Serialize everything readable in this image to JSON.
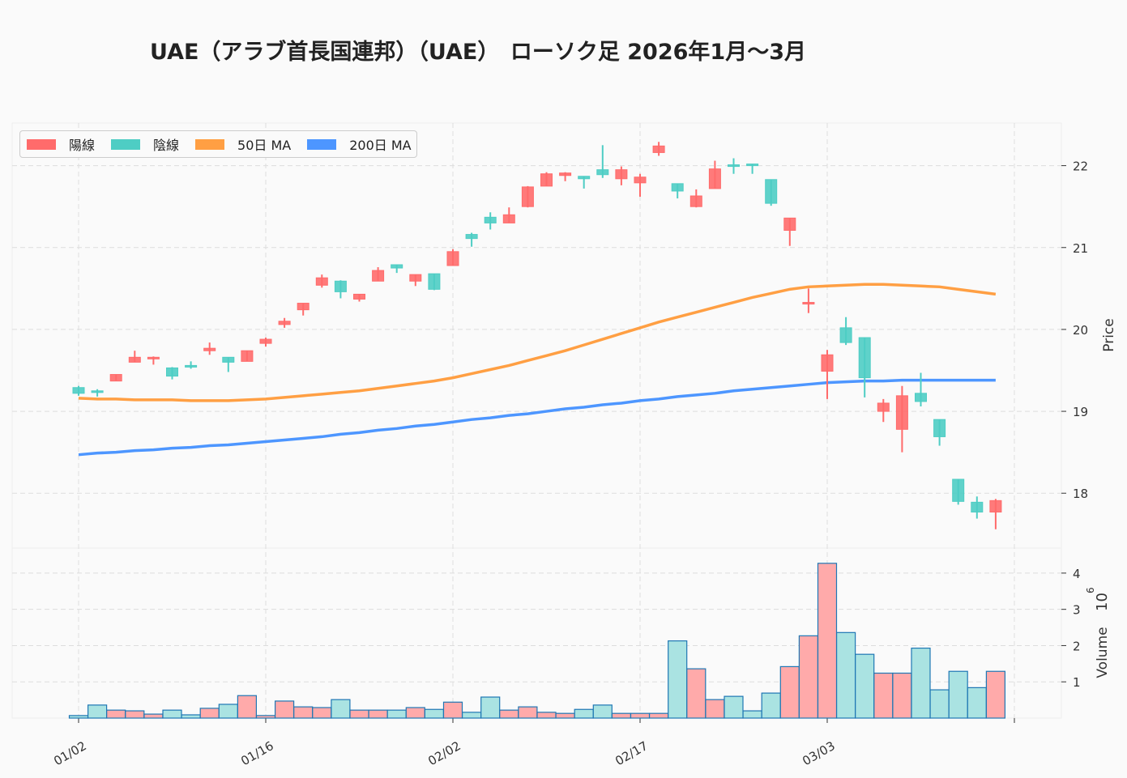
{
  "chart_data": [
    {
      "type": "candlestick",
      "title": "UAE（アラブ首長国連邦）（UAE）　ローソク足  2026年1月〜3月",
      "ylabel": "Price",
      "ylim": [
        17.33,
        22.52
      ],
      "yticks": [
        18,
        19,
        20,
        21,
        22
      ],
      "xticks": [
        {
          "label": "01/02",
          "index": 0
        },
        {
          "label": "01/16",
          "index": 10
        },
        {
          "label": "02/02",
          "index": 20
        },
        {
          "label": "02/17",
          "index": 30
        },
        {
          "label": "03/03",
          "index": 40
        },
        {
          "label": "",
          "index": 50
        }
      ],
      "grid": true,
      "legend_position": "top-left",
      "legend": [
        "陽線",
        "陰線",
        "50日 MA",
        "200日 MA"
      ],
      "colors": {
        "up": "#ff6b6b",
        "down": "#4ecdc4",
        "ma50": "#ff9f43",
        "ma200": "#4d96ff"
      },
      "ohlc": [
        [
          19.29,
          19.31,
          19.19,
          19.22
        ],
        [
          19.25,
          19.27,
          19.18,
          19.23
        ],
        [
          19.37,
          19.45,
          19.37,
          19.45
        ],
        [
          19.6,
          19.74,
          19.6,
          19.66
        ],
        [
          19.64,
          19.67,
          19.57,
          19.66
        ],
        [
          19.53,
          19.54,
          19.39,
          19.43
        ],
        [
          19.56,
          19.61,
          19.52,
          19.54
        ],
        [
          19.74,
          19.84,
          19.69,
          19.77
        ],
        [
          19.66,
          19.66,
          19.48,
          19.6
        ],
        [
          19.61,
          19.74,
          19.61,
          19.74
        ],
        [
          19.83,
          19.9,
          19.79,
          19.88
        ],
        [
          20.06,
          20.14,
          20.02,
          20.1
        ],
        [
          20.24,
          20.32,
          20.17,
          20.32
        ],
        [
          20.54,
          20.67,
          20.51,
          20.63
        ],
        [
          20.59,
          20.6,
          20.38,
          20.46
        ],
        [
          20.37,
          20.43,
          20.34,
          20.43
        ],
        [
          20.59,
          20.76,
          20.59,
          20.72
        ],
        [
          20.79,
          20.79,
          20.69,
          20.75
        ],
        [
          20.59,
          20.67,
          20.53,
          20.67
        ],
        [
          20.68,
          20.68,
          20.48,
          20.49
        ],
        [
          20.78,
          20.98,
          20.78,
          20.95
        ],
        [
          21.16,
          21.18,
          21.01,
          21.11
        ],
        [
          21.37,
          21.43,
          21.22,
          21.3
        ],
        [
          21.3,
          21.49,
          21.3,
          21.4
        ],
        [
          21.5,
          21.75,
          21.49,
          21.74
        ],
        [
          21.75,
          21.92,
          21.75,
          21.9
        ],
        [
          21.88,
          21.92,
          21.81,
          21.91
        ],
        [
          21.87,
          21.87,
          21.72,
          21.84
        ],
        [
          21.95,
          22.25,
          21.85,
          21.89
        ],
        [
          21.84,
          21.99,
          21.76,
          21.95
        ],
        [
          21.79,
          21.9,
          21.62,
          21.86
        ],
        [
          22.16,
          22.29,
          22.12,
          22.24
        ],
        [
          21.78,
          21.78,
          21.6,
          21.69
        ],
        [
          21.5,
          21.71,
          21.49,
          21.63
        ],
        [
          21.72,
          22.06,
          21.72,
          21.96
        ],
        [
          22.01,
          22.09,
          21.9,
          22.0
        ],
        [
          22.02,
          22.02,
          21.9,
          22.0
        ],
        [
          21.83,
          21.83,
          21.51,
          21.54
        ],
        [
          21.21,
          21.36,
          21.02,
          21.36
        ],
        [
          20.31,
          20.5,
          20.2,
          20.33
        ],
        [
          19.49,
          19.75,
          19.15,
          19.69
        ],
        [
          20.02,
          20.15,
          19.81,
          19.84
        ],
        [
          19.9,
          19.9,
          19.17,
          19.41
        ],
        [
          19.0,
          19.15,
          18.87,
          19.1
        ],
        [
          18.78,
          19.31,
          18.5,
          19.19
        ],
        [
          19.22,
          19.47,
          19.06,
          19.12
        ],
        [
          18.9,
          18.9,
          18.58,
          18.69
        ],
        [
          18.17,
          18.17,
          17.86,
          17.9
        ],
        [
          17.89,
          17.96,
          17.69,
          17.77
        ],
        [
          17.77,
          17.93,
          17.56,
          17.91
        ]
      ],
      "ma50": [
        19.16,
        19.15,
        19.15,
        19.14,
        19.14,
        19.14,
        19.13,
        19.13,
        19.13,
        19.14,
        19.15,
        19.17,
        19.19,
        19.21,
        19.23,
        19.25,
        19.28,
        19.31,
        19.34,
        19.37,
        19.41,
        19.46,
        19.51,
        19.56,
        19.62,
        19.68,
        19.74,
        19.81,
        19.88,
        19.95,
        20.02,
        20.09,
        20.15,
        20.21,
        20.27,
        20.33,
        20.39,
        20.44,
        20.49,
        20.52,
        20.53,
        20.54,
        20.55,
        20.55,
        20.54,
        20.53,
        20.52,
        20.49,
        20.46,
        20.43
      ],
      "ma200": [
        18.47,
        18.49,
        18.5,
        18.52,
        18.53,
        18.55,
        18.56,
        18.58,
        18.59,
        18.61,
        18.63,
        18.65,
        18.67,
        18.69,
        18.72,
        18.74,
        18.77,
        18.79,
        18.82,
        18.84,
        18.87,
        18.9,
        18.92,
        18.95,
        18.97,
        19.0,
        19.03,
        19.05,
        19.08,
        19.1,
        19.13,
        19.15,
        19.18,
        19.2,
        19.22,
        19.25,
        19.27,
        19.29,
        19.31,
        19.33,
        19.35,
        19.36,
        19.37,
        19.37,
        19.38,
        19.38,
        19.38,
        19.38,
        19.38,
        19.38
      ]
    },
    {
      "type": "bar",
      "ylabel": "Volume",
      "yunit": "10",
      "yunit_exp": "6",
      "ylim": [
        0,
        4.69
      ],
      "yticks": [
        1,
        2,
        3,
        4
      ],
      "colors": {
        "up": "#ffaaaa",
        "down": "#aae3e2",
        "edge": "#1f77b4"
      },
      "values": [
        0.07,
        0.36,
        0.22,
        0.2,
        0.11,
        0.22,
        0.09,
        0.27,
        0.38,
        0.62,
        0.07,
        0.47,
        0.31,
        0.29,
        0.51,
        0.22,
        0.22,
        0.22,
        0.29,
        0.24,
        0.44,
        0.16,
        0.58,
        0.22,
        0.31,
        0.16,
        0.13,
        0.24,
        0.36,
        0.13,
        0.13,
        0.13,
        2.13,
        1.36,
        0.51,
        0.6,
        0.2,
        0.69,
        1.42,
        2.27,
        4.27,
        2.36,
        1.76,
        1.24,
        1.24,
        1.93,
        0.78,
        1.29,
        0.84,
        1.29
      ]
    }
  ]
}
